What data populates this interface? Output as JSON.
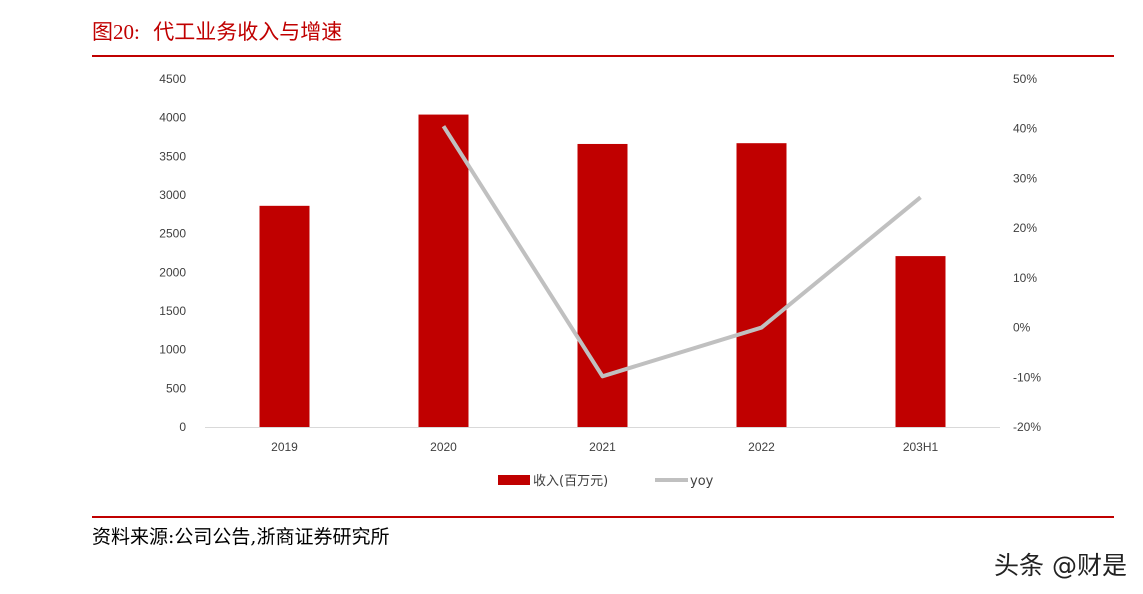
{
  "figure": {
    "label": "图20:",
    "title": "代工业务收入与增速",
    "source": "资料来源:公司公告,浙商证券研究所",
    "watermark": "头条 @财是"
  },
  "colors": {
    "bar": "#c00000",
    "line": "#c0c0c0",
    "accent": "#c00000",
    "axis": "#d9d9d9"
  },
  "chart_data": {
    "type": "bar",
    "title": "",
    "categories": [
      "2019",
      "2020",
      "2021",
      "2022",
      "203H1"
    ],
    "series": [
      {
        "name": "收入(百万元)",
        "type": "bar",
        "axis": "left",
        "values": [
          2860,
          4040,
          3660,
          3670,
          2210
        ]
      },
      {
        "name": "yoy",
        "type": "line",
        "axis": "right",
        "values": [
          null,
          0.405,
          -0.098,
          0.0,
          0.262
        ]
      }
    ],
    "y_left": {
      "min": 0,
      "max": 4500,
      "ticks": [
        "0",
        "500",
        "1000",
        "1500",
        "2000",
        "2500",
        "3000",
        "3500",
        "4000",
        "4500"
      ]
    },
    "y_right": {
      "min": -0.2,
      "max": 0.5,
      "ticks": [
        "-20%",
        "-10%",
        "0%",
        "10%",
        "20%",
        "30%",
        "40%",
        "50%"
      ]
    },
    "grid": false,
    "legend": "bottom-center"
  }
}
